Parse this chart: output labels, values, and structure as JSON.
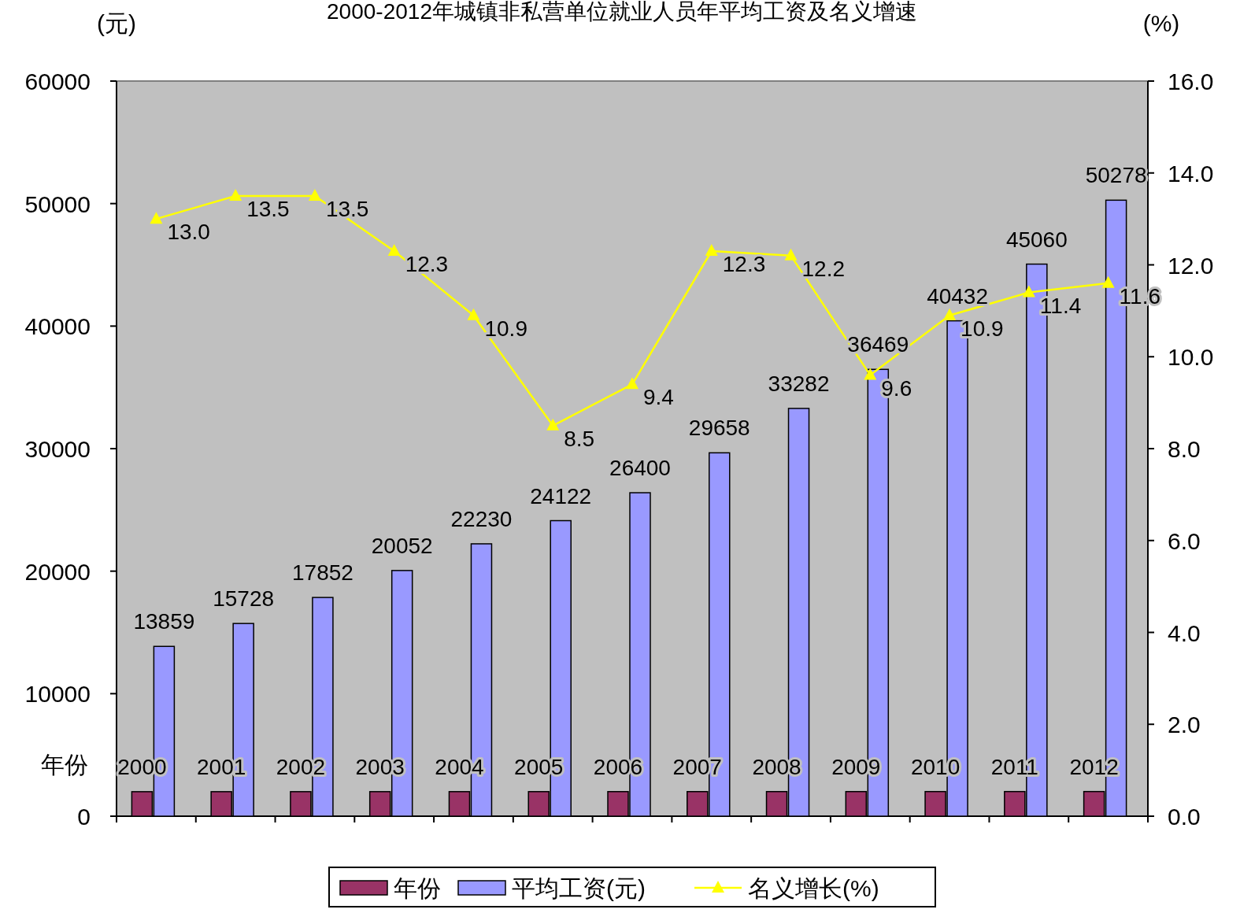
{
  "chart_data": {
    "type": "bar",
    "title": "2000-2012年城镇非私营单位就业人员年平均工资及名义增速",
    "ylabel": "(元)",
    "y2label": "(%)",
    "categories": [
      null,
      null,
      null,
      null,
      null,
      null,
      null,
      null,
      null,
      null,
      null,
      null,
      null
    ],
    "series": [
      {
        "name": "年份",
        "color": "#993366",
        "values": [
          2000,
          2001,
          2002,
          2003,
          2004,
          2005,
          2006,
          2007,
          2008,
          2009,
          2010,
          2011,
          2012
        ]
      },
      {
        "name": "平均工资(元)",
        "color": "#9999ff",
        "values": [
          13859,
          15728,
          17852,
          20052,
          22230,
          24122,
          26400,
          29658,
          33282,
          36469,
          40432,
          45060,
          50278
        ]
      },
      {
        "name": "名义增长(%)",
        "type": "line",
        "axis": "y2",
        "color": "#ffff00",
        "values": [
          13.0,
          13.5,
          13.5,
          12.3,
          10.9,
          8.5,
          9.4,
          12.3,
          12.2,
          9.6,
          10.9,
          11.4,
          11.6
        ],
        "value_labels": [
          "13.0",
          "13.5",
          "13.5",
          "12.3",
          "10.9",
          "8.5",
          "9.4",
          "12.3",
          "12.2",
          "9.6",
          "10.9",
          "11.4",
          "11.6"
        ]
      }
    ],
    "ylim": [
      0,
      60000
    ],
    "yticks": [
      0,
      10000,
      20000,
      30000,
      40000,
      50000,
      60000
    ],
    "y2lim": [
      0,
      16
    ],
    "y2ticks": [
      {
        "value": 0,
        "label": "0.0"
      },
      {
        "value": 2,
        "label": "2.0"
      },
      {
        "value": 4,
        "label": "4.0"
      },
      {
        "value": 6,
        "label": "6.0"
      },
      {
        "value": 8,
        "label": "8.0"
      },
      {
        "value": 10,
        "label": "10.0"
      },
      {
        "value": 12,
        "label": "12.0"
      },
      {
        "value": 14,
        "label": "14.0"
      },
      {
        "value": 16,
        "label": "16.0"
      }
    ],
    "data_labels": true,
    "marker": "triangle",
    "legend": "bottom",
    "annotations": [
      "年份"
    ]
  }
}
